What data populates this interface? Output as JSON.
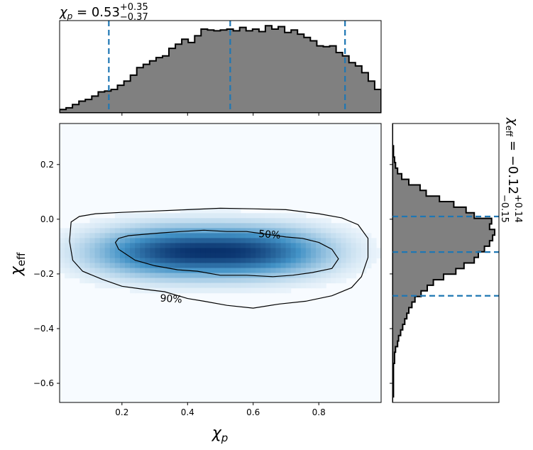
{
  "chart_data": {
    "type": "corner",
    "colors": {
      "hist_fill": "#808080",
      "hist_edge": "#000000",
      "quantile_line": "#1f77b4",
      "density_low": "#f7fbff",
      "density_high": "#08306b",
      "contour": "#000000"
    },
    "chi_p": {
      "symbol": "χ",
      "sub": "p",
      "summary_median": "0.53",
      "summary_plus": "+0.35",
      "summary_minus": "−0.37",
      "quantiles": [
        0.16,
        0.53,
        0.88
      ],
      "xlim": [
        0.01,
        0.99
      ],
      "xticks": [
        0.2,
        0.4,
        0.6,
        0.8
      ],
      "xtick_labels": [
        "0.2",
        "0.4",
        "0.6",
        "0.8"
      ],
      "hist_bin_edges_start": 0.01,
      "hist_bin_width": 0.0196,
      "hist_heights": [
        0.04,
        0.06,
        0.1,
        0.14,
        0.16,
        0.2,
        0.25,
        0.26,
        0.28,
        0.33,
        0.38,
        0.45,
        0.54,
        0.58,
        0.62,
        0.66,
        0.68,
        0.77,
        0.82,
        0.88,
        0.84,
        0.92,
        1.0,
        0.99,
        0.98,
        0.99,
        1.0,
        0.98,
        1.02,
        0.98,
        1.0,
        0.97,
        1.04,
        1.0,
        1.03,
        0.96,
        0.99,
        0.94,
        0.9,
        0.86,
        0.8,
        0.79,
        0.8,
        0.72,
        0.68,
        0.6,
        0.56,
        0.48,
        0.38,
        0.28
      ]
    },
    "chi_eff": {
      "symbol": "χ",
      "sub": "eff",
      "summary_median": "−0.12",
      "summary_plus": "+0.14",
      "summary_minus": "−0.15",
      "quantiles": [
        0.01,
        -0.12,
        -0.28
      ],
      "ylim": [
        -0.67,
        0.35
      ],
      "yticks": [
        0.2,
        0.0,
        -0.2,
        -0.4,
        -0.6
      ],
      "ytick_labels": [
        "0.2",
        "0.0",
        "−0.2",
        "−0.4",
        "−0.6"
      ],
      "hist_bin_edges_start": -0.67,
      "hist_bin_width": 0.0204,
      "hist_heights": [
        0.0,
        0.01,
        0.01,
        0.01,
        0.01,
        0.01,
        0.01,
        0.02,
        0.02,
        0.03,
        0.05,
        0.06,
        0.08,
        0.1,
        0.12,
        0.14,
        0.16,
        0.19,
        0.22,
        0.28,
        0.34,
        0.4,
        0.5,
        0.62,
        0.7,
        0.8,
        0.84,
        0.9,
        0.95,
        0.98,
        1.0,
        0.95,
        0.97,
        0.8,
        0.72,
        0.6,
        0.46,
        0.33,
        0.27,
        0.16,
        0.09,
        0.05,
        0.03,
        0.02,
        0.01,
        0.01,
        0.0,
        0.0,
        0.0,
        0.0
      ]
    },
    "density": {
      "center": [
        0.47,
        -0.12
      ],
      "sigma": [
        0.2,
        0.06
      ],
      "contours": [
        {
          "label": "50%",
          "points": [
            [
              0.19,
              -0.07
            ],
            [
              0.22,
              -0.06
            ],
            [
              0.27,
              -0.055
            ],
            [
              0.32,
              -0.05
            ],
            [
              0.38,
              -0.045
            ],
            [
              0.45,
              -0.04
            ],
            [
              0.52,
              -0.045
            ],
            [
              0.58,
              -0.045
            ],
            [
              0.64,
              -0.055
            ],
            [
              0.7,
              -0.065
            ],
            [
              0.75,
              -0.07
            ],
            [
              0.8,
              -0.085
            ],
            [
              0.84,
              -0.11
            ],
            [
              0.86,
              -0.145
            ],
            [
              0.84,
              -0.18
            ],
            [
              0.78,
              -0.195
            ],
            [
              0.72,
              -0.205
            ],
            [
              0.66,
              -0.21
            ],
            [
              0.58,
              -0.205
            ],
            [
              0.5,
              -0.205
            ],
            [
              0.43,
              -0.19
            ],
            [
              0.37,
              -0.185
            ],
            [
              0.3,
              -0.17
            ],
            [
              0.24,
              -0.15
            ],
            [
              0.19,
              -0.11
            ],
            [
              0.18,
              -0.085
            ]
          ]
        },
        {
          "label": "90%",
          "points": [
            [
              0.045,
              -0.01
            ],
            [
              0.07,
              0.01
            ],
            [
              0.12,
              0.02
            ],
            [
              0.2,
              0.025
            ],
            [
              0.3,
              0.03
            ],
            [
              0.4,
              0.035
            ],
            [
              0.5,
              0.04
            ],
            [
              0.6,
              0.038
            ],
            [
              0.7,
              0.035
            ],
            [
              0.8,
              0.02
            ],
            [
              0.87,
              0.005
            ],
            [
              0.92,
              -0.02
            ],
            [
              0.95,
              -0.07
            ],
            [
              0.95,
              -0.14
            ],
            [
              0.93,
              -0.21
            ],
            [
              0.9,
              -0.25
            ],
            [
              0.84,
              -0.28
            ],
            [
              0.76,
              -0.3
            ],
            [
              0.68,
              -0.31
            ],
            [
              0.6,
              -0.325
            ],
            [
              0.52,
              -0.315
            ],
            [
              0.45,
              -0.3
            ],
            [
              0.4,
              -0.29
            ],
            [
              0.33,
              -0.265
            ],
            [
              0.26,
              -0.255
            ],
            [
              0.2,
              -0.245
            ],
            [
              0.14,
              -0.22
            ],
            [
              0.08,
              -0.19
            ],
            [
              0.05,
              -0.15
            ],
            [
              0.04,
              -0.08
            ]
          ]
        }
      ],
      "contour_labels": [
        {
          "text": "50%",
          "x": 0.65,
          "y": -0.055
        },
        {
          "text": "90%",
          "x": 0.35,
          "y": -0.29
        }
      ]
    }
  }
}
